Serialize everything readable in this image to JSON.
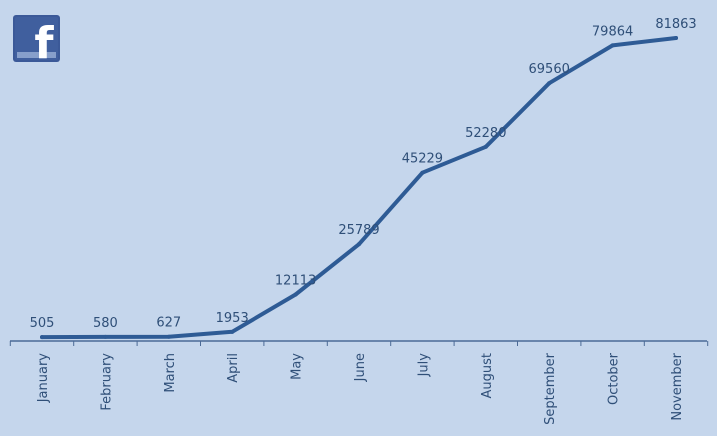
{
  "logo": {
    "icon": "facebook-logo-icon",
    "letter": "f",
    "color": "#3b5998"
  },
  "colors": {
    "background": "#c5d6ec",
    "line": "#2e5b95",
    "axis": "#4b6a96",
    "text": "#2f4f78"
  },
  "chart_data": {
    "type": "line",
    "title": "",
    "xlabel": "",
    "ylabel": "",
    "grid": false,
    "ylim": [
      0,
      85000
    ],
    "categories": [
      "January",
      "February",
      "March",
      "April",
      "May",
      "June",
      "July",
      "August",
      "September",
      "October",
      "November"
    ],
    "series": [
      {
        "values": [
          505,
          580,
          627,
          1953,
          12113,
          25789,
          45229,
          52280,
          69560,
          79864,
          81863
        ]
      }
    ],
    "data_labels": [
      "505",
      "580",
      "627",
      "1953",
      "12113",
      "25789",
      "45229",
      "52280",
      "69560",
      "79864",
      "81863"
    ]
  }
}
